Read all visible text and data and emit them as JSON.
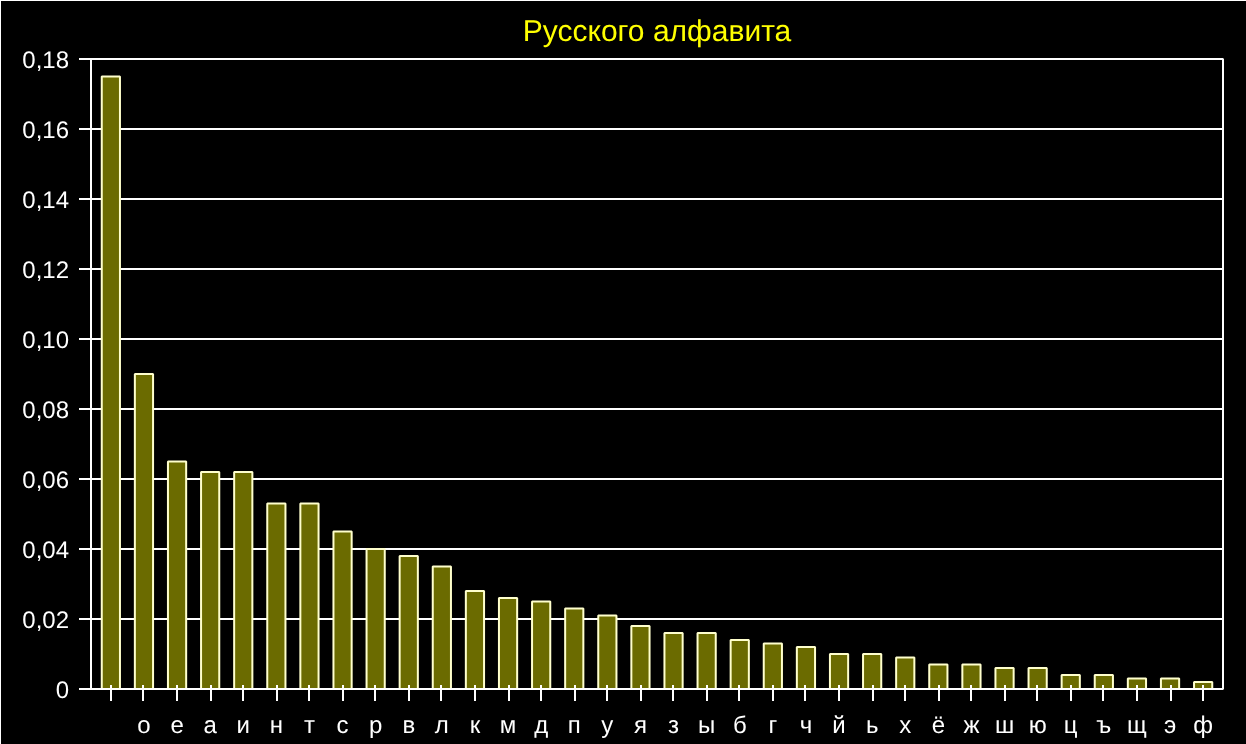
{
  "chart_data": {
    "type": "bar",
    "title": "Русского алфавита",
    "categories": [
      null,
      "о",
      "е",
      "а",
      "и",
      "н",
      "т",
      "с",
      "р",
      "в",
      "л",
      "к",
      "м",
      "д",
      "п",
      "у",
      "я",
      "з",
      "ы",
      "б",
      "г",
      "ч",
      "й",
      "ь",
      "х",
      "ё",
      "ж",
      "ш",
      "ю",
      "ц",
      "ъ",
      "щ",
      "э",
      "ф"
    ],
    "values": [
      0.175,
      0.09,
      0.065,
      0.062,
      0.062,
      0.053,
      0.053,
      0.045,
      0.04,
      0.038,
      0.035,
      0.028,
      0.026,
      0.025,
      0.023,
      0.021,
      0.018,
      0.016,
      0.016,
      0.014,
      0.013,
      0.012,
      0.01,
      0.01,
      0.009,
      0.007,
      0.007,
      0.006,
      0.006,
      0.004,
      0.004,
      0.003,
      0.003,
      0.002
    ],
    "color": "#6b6b00",
    "ylim": [
      0,
      0.18
    ],
    "yticks": [
      0,
      {
        "value": 0.02,
        "label": "0,02"
      },
      {
        "value": 0.04,
        "label": "0,04"
      },
      {
        "value": 0.06,
        "label": "0,06"
      },
      {
        "value": 0.08,
        "label": "0,08"
      },
      {
        "value": 0.1,
        "label": "0,10"
      },
      {
        "value": 0.12,
        "label": "0,12"
      },
      {
        "value": 0.14,
        "label": "0,14"
      },
      {
        "value": 0.16,
        "label": "0,16"
      },
      {
        "value": 0.18,
        "label": "0,18"
      }
    ],
    "grid": "y"
  }
}
